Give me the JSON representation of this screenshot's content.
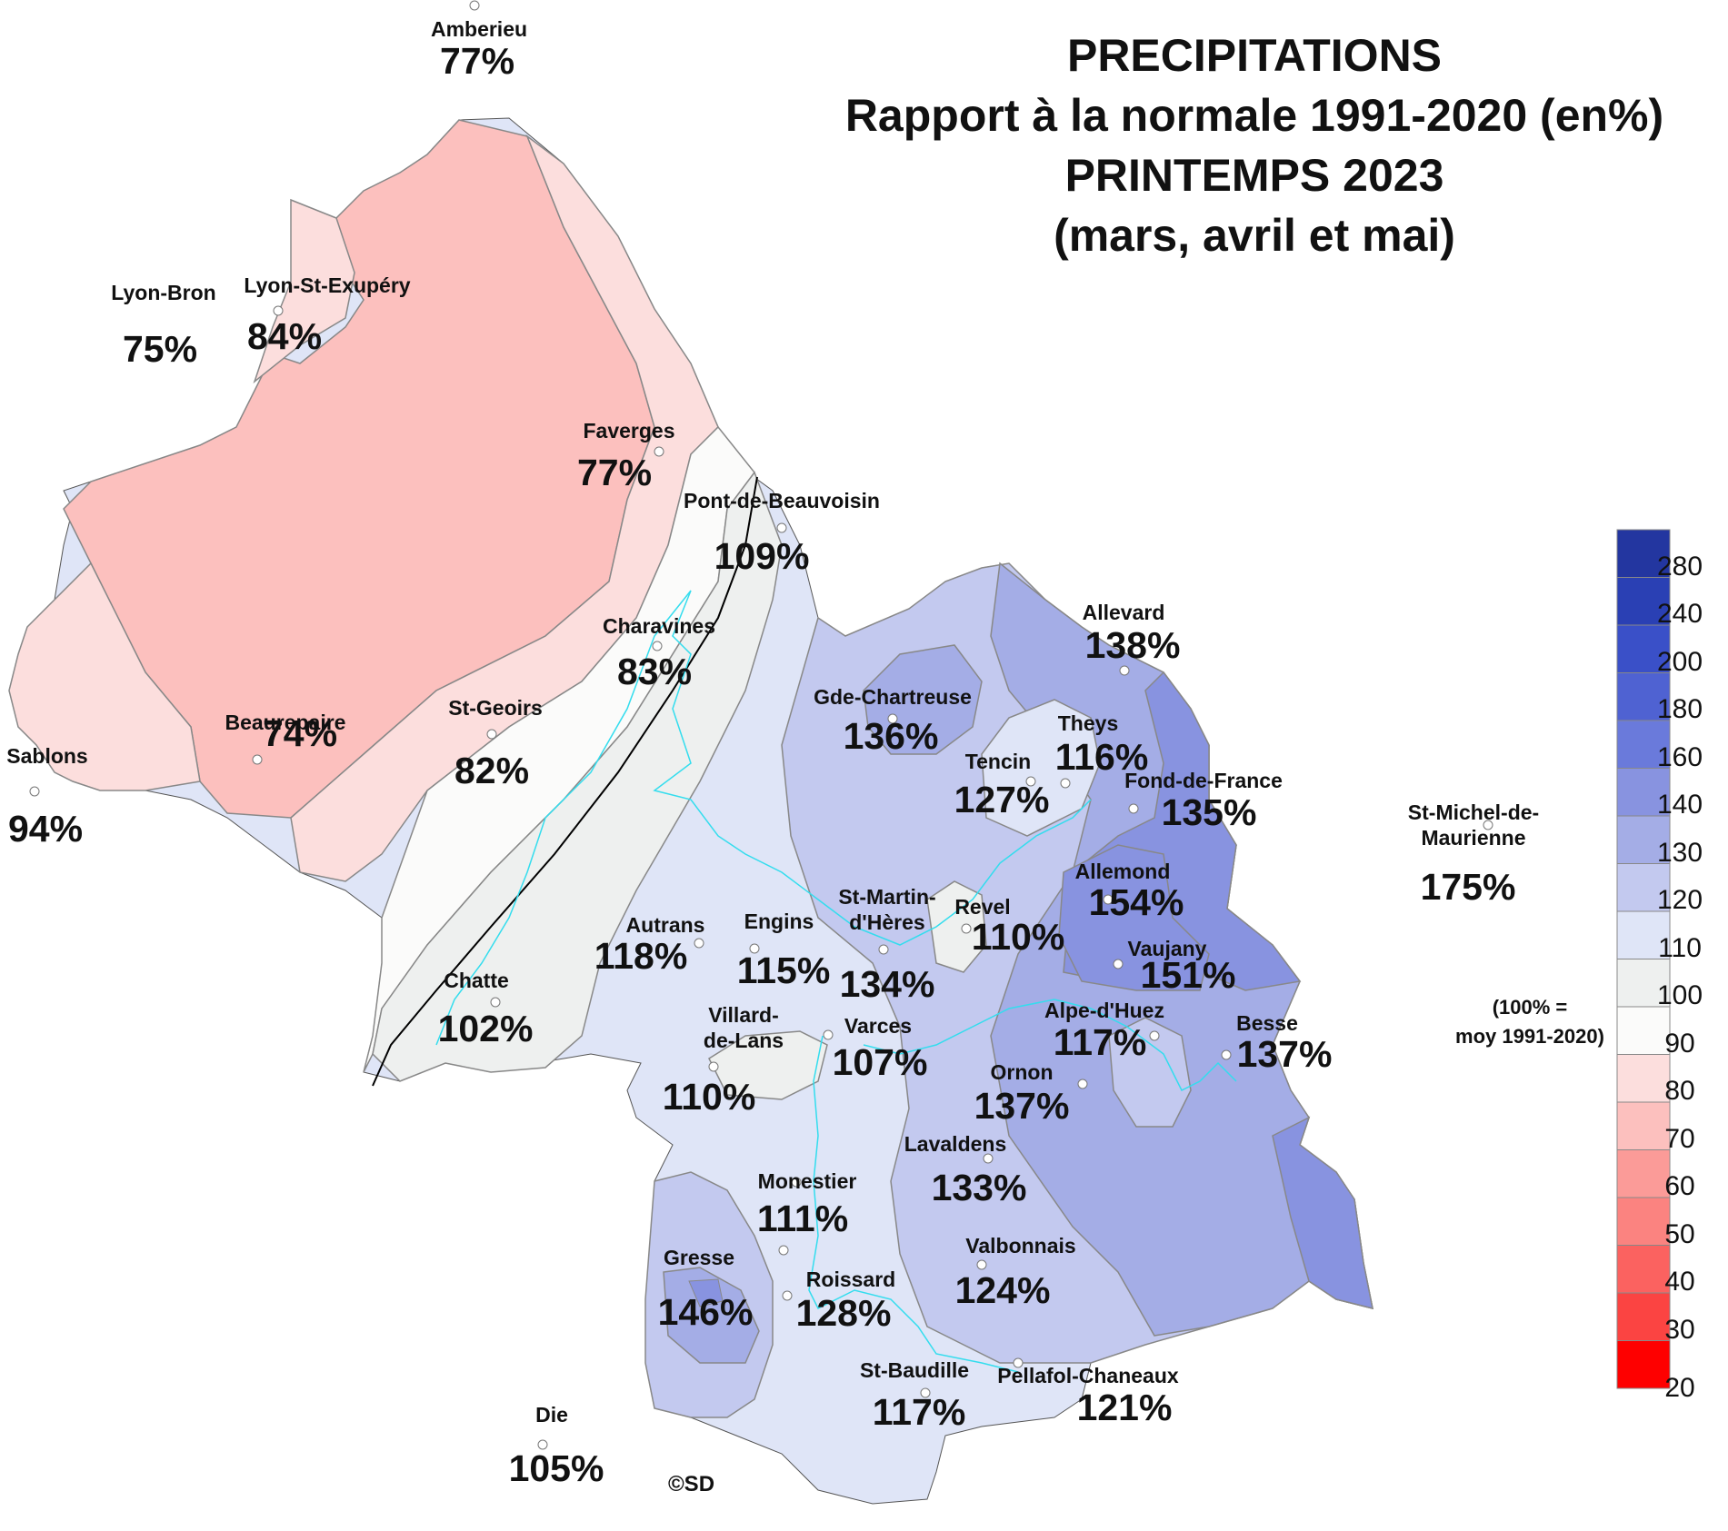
{
  "title": {
    "line1": "PRECIPITATIONS",
    "line2": "Rapport à la normale 1991-2020 (en%)",
    "line3": "PRINTEMPS 2023",
    "line4": "(mars, avril et mai)"
  },
  "legend": {
    "ticks": [
      "280",
      "240",
      "200",
      "180",
      "160",
      "140",
      "130",
      "120",
      "110",
      "100",
      "90",
      "80",
      "70",
      "60",
      "50",
      "40",
      "30",
      "20"
    ],
    "colors": [
      "#2336a0",
      "#2a40b4",
      "#3a50c8",
      "#4f62d2",
      "#6a7adb",
      "#8893e0",
      "#a4ade6",
      "#c3c9ef",
      "#dfe5f7",
      "#eef0ef",
      "#fbfbfa",
      "#fcdedd",
      "#fcc0be",
      "#fb9b98",
      "#fb8380",
      "#fb6260",
      "#fb4442",
      "#fe0000"
    ],
    "note_line1": "(100% =",
    "note_line2": "moy 1991-2020)"
  },
  "credit": "©SD",
  "stations": [
    {
      "name": "Amberieu",
      "value": "77%"
    },
    {
      "name": "Lyon-Bron",
      "value": "75%"
    },
    {
      "name": "Lyon-St-Exupéry",
      "value": "84%"
    },
    {
      "name": "Faverges",
      "value": "77%"
    },
    {
      "name": "Pont-de-Beauvoisin",
      "value": "109%"
    },
    {
      "name": "Charavines",
      "value": "83%"
    },
    {
      "name": "St-Geoirs",
      "value": "82%"
    },
    {
      "name": "Beaurepaire",
      "value": "74%"
    },
    {
      "name": "Sablons",
      "value": "94%"
    },
    {
      "name": "Allevard",
      "value": "138%"
    },
    {
      "name": "Gde-Chartreuse",
      "value": "136%"
    },
    {
      "name": "Theys",
      "value": "116%"
    },
    {
      "name": "Tencin",
      "value": "127%"
    },
    {
      "name": "Fond-de-France",
      "value": "135%"
    },
    {
      "name": "St-Michel-de-\nMaurienne",
      "value": "175%"
    },
    {
      "name": "Allemond",
      "value": "154%"
    },
    {
      "name": "St-Martin-\nd'Hères",
      "value": "134%"
    },
    {
      "name": "Revel",
      "value": "110%"
    },
    {
      "name": "Autrans",
      "value": "118%"
    },
    {
      "name": "Engins",
      "value": "115%"
    },
    {
      "name": "Vaujany",
      "value": "151%"
    },
    {
      "name": "Chatte",
      "value": "102%"
    },
    {
      "name": "Alpe-d'Huez",
      "value": "117%"
    },
    {
      "name": "Besse",
      "value": "137%"
    },
    {
      "name": "Villard-\nde-Lans",
      "value": "110%"
    },
    {
      "name": "Varces",
      "value": "107%"
    },
    {
      "name": "Ornon",
      "value": "137%"
    },
    {
      "name": "Lavaldens",
      "value": "133%"
    },
    {
      "name": "Monestier",
      "value": "111%"
    },
    {
      "name": "Gresse",
      "value": "146%"
    },
    {
      "name": "Roissard",
      "value": "128%"
    },
    {
      "name": "Valbonnais",
      "value": "124%"
    },
    {
      "name": "St-Baudille",
      "value": "117%"
    },
    {
      "name": "Pellafol-Chaneaux",
      "value": "121%"
    },
    {
      "name": "Die",
      "value": "105%"
    }
  ]
}
